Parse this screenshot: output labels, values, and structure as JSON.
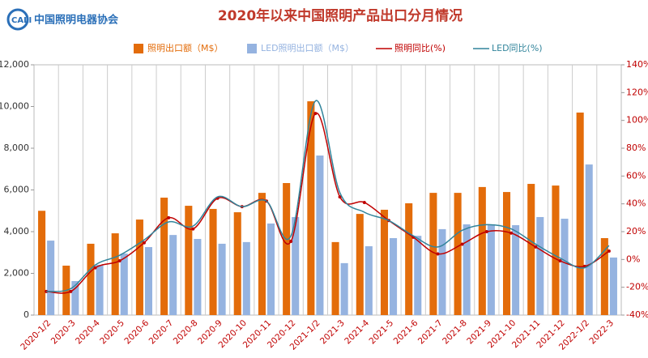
{
  "logo": {
    "abbr": "CALI",
    "name": "中国照明电器协会"
  },
  "chart_data": {
    "type": "bar",
    "title": "2020年以来中国照明产品出口分月情况",
    "categories": [
      "2020-1/2",
      "2020-3",
      "2020-4",
      "2020-5",
      "2020-6",
      "2020-7",
      "2020-8",
      "2020-9",
      "2020-10",
      "2020-11",
      "2020-12",
      "2021-1/2",
      "2021-3",
      "2021-4",
      "2021-5",
      "2021-6",
      "2021-7",
      "2021-8",
      "2021-9",
      "2021-10",
      "2021-11",
      "2021-12",
      "2022-1/2",
      "2022-3"
    ],
    "series": [
      {
        "name": "照明出口额（M$）",
        "type": "bar",
        "color": "#e36c0a",
        "values": [
          5000,
          2370,
          3420,
          3920,
          4580,
          5630,
          5240,
          5090,
          4930,
          5860,
          6330,
          10250,
          3500,
          4850,
          5050,
          5360,
          5860,
          5860,
          6140,
          5900,
          6290,
          6210,
          9710,
          3690
        ]
      },
      {
        "name": "LED照明出口额（M$）",
        "type": "bar",
        "color": "#95b3e0",
        "values": [
          3570,
          1630,
          2410,
          2950,
          3260,
          3840,
          3650,
          3420,
          3500,
          4390,
          4700,
          7650,
          2490,
          3300,
          3690,
          3800,
          4120,
          4350,
          4310,
          4310,
          4700,
          4620,
          7220,
          2760
        ]
      },
      {
        "name": "照明同比(%)",
        "type": "line",
        "axis": "y2",
        "color": "#c00000",
        "markers": true,
        "values": [
          -23,
          -23,
          -6,
          -1,
          12,
          30,
          22,
          44,
          38,
          42,
          13,
          105,
          45,
          41,
          28,
          16,
          4,
          11,
          20,
          19,
          9,
          -1,
          -5,
          6
        ]
      },
      {
        "name": "LED同比(%)",
        "type": "line",
        "axis": "y2",
        "color": "#31849b",
        "markers": false,
        "values": [
          -23,
          -21,
          -4,
          3,
          14,
          27,
          24,
          45,
          38,
          42,
          17,
          114,
          48,
          34,
          28,
          17,
          9,
          21,
          25,
          22,
          11,
          1,
          -6,
          10
        ]
      }
    ],
    "ylim": [
      0,
      12000
    ],
    "yticks": [
      0,
      {
        "value": 2000,
        "label": "2,000"
      },
      {
        "value": 4000,
        "label": "4,000"
      },
      {
        "value": 6000,
        "label": "6,000"
      },
      {
        "value": 8000,
        "label": "8,000"
      },
      {
        "value": 10000,
        "label": "10,000"
      },
      {
        "value": 12000,
        "label": "12,000"
      }
    ],
    "y2lim": [
      -40,
      140
    ],
    "y2ticks": [
      {
        "value": -40,
        "label": "-40%"
      },
      {
        "value": -20,
        "label": "-20%"
      },
      {
        "value": 0,
        "label": "0%"
      },
      {
        "value": 20,
        "label": "20%"
      },
      {
        "value": 40,
        "label": "40%"
      },
      {
        "value": 60,
        "label": "60%"
      },
      {
        "value": 80,
        "label": "80%"
      },
      {
        "value": 100,
        "label": "100%"
      },
      {
        "value": 120,
        "label": "120%"
      },
      {
        "value": 140,
        "label": "140%"
      }
    ],
    "vertical_grid": true
  }
}
